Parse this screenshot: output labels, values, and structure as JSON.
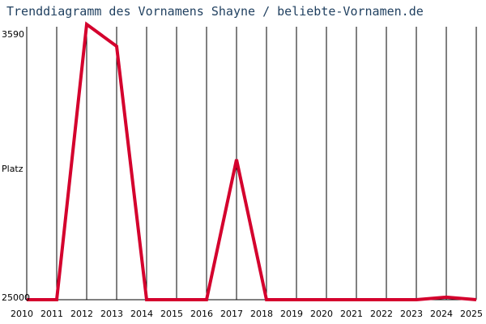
{
  "chart_data": {
    "type": "line",
    "title": "Trenddiagramm des Vornamens Shayne / beliebte-Vornamen.de",
    "xlabel": "",
    "ylabel": "Platz",
    "y_inverted": true,
    "ylim": [
      3590,
      25000
    ],
    "y_ticks": [
      "3590",
      "25000"
    ],
    "x": [
      "2010",
      "2011",
      "2012",
      "2013",
      "2014",
      "2015",
      "2016",
      "2017",
      "2018",
      "2019",
      "2020",
      "2021",
      "2022",
      "2023",
      "2024",
      "2025"
    ],
    "series": [
      {
        "values": [
          25000,
          25000,
          3590,
          5300,
          25000,
          25000,
          25000,
          14100,
          25000,
          25000,
          25000,
          25000,
          25000,
          25000,
          24800,
          25000
        ]
      }
    ],
    "grid": "vertical",
    "colors": {
      "line": "#d4002d",
      "grid": "#000000",
      "title": "#1f3f5f"
    }
  }
}
